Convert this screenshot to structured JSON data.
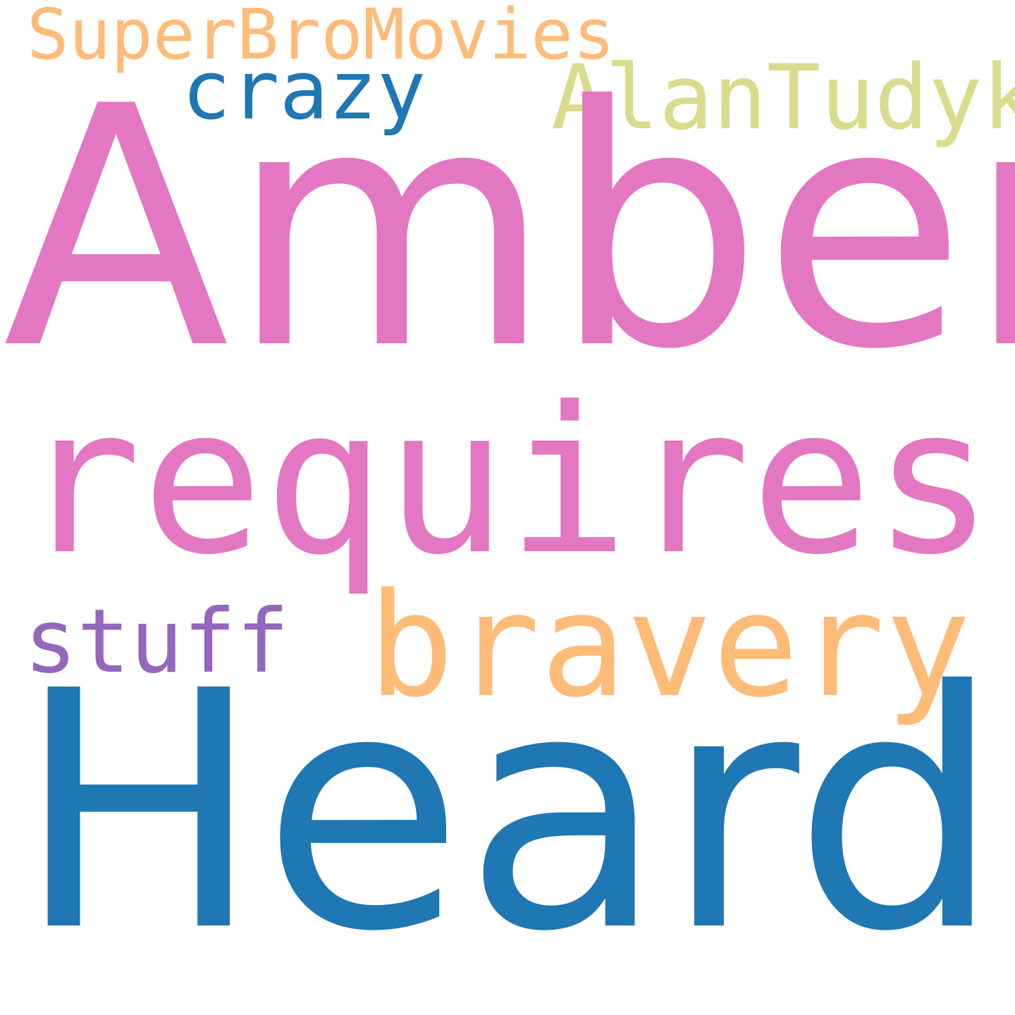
{
  "words": {
    "amber": {
      "text": "Amber",
      "color": "#E377C2"
    },
    "heard": {
      "text": "Heard",
      "color": "#1F77B4"
    },
    "requires": {
      "text": "requires",
      "color": "#E377C2"
    },
    "bravery": {
      "text": "bravery",
      "color": "#FFBB78"
    },
    "superbro": {
      "text": "SuperBroMovies",
      "color": "#FFBB78"
    },
    "alantudyk": {
      "text": "AlanTudyk",
      "color": "#DBDB8D"
    },
    "crazy": {
      "text": "crazy",
      "color": "#1F77B4"
    },
    "stuff": {
      "text": "stuff",
      "color": "#9467BD"
    }
  }
}
